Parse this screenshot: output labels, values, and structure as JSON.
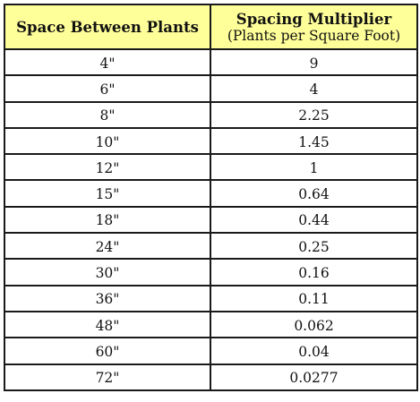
{
  "table": {
    "headers": {
      "space_label": "Space Between Plants",
      "multiplier_label": "Spacing Multiplier",
      "multiplier_sub": "(Plants per Square Foot)"
    },
    "rows": [
      {
        "space": "4\"",
        "multiplier": "9"
      },
      {
        "space": "6\"",
        "multiplier": "4"
      },
      {
        "space": "8\"",
        "multiplier": "2.25"
      },
      {
        "space": "10\"",
        "multiplier": "1.45"
      },
      {
        "space": "12\"",
        "multiplier": "1"
      },
      {
        "space": "15\"",
        "multiplier": "0.64"
      },
      {
        "space": "18\"",
        "multiplier": "0.44"
      },
      {
        "space": "24\"",
        "multiplier": "0.25"
      },
      {
        "space": "30\"",
        "multiplier": "0.16"
      },
      {
        "space": "36\"",
        "multiplier": "0.11"
      },
      {
        "space": "48\"",
        "multiplier": "0.062"
      },
      {
        "space": "60\"",
        "multiplier": "0.04"
      },
      {
        "space": "72\"",
        "multiplier": "0.0277"
      }
    ]
  },
  "colors": {
    "header_background": "#ffff99",
    "border": "#1a1a1a"
  }
}
